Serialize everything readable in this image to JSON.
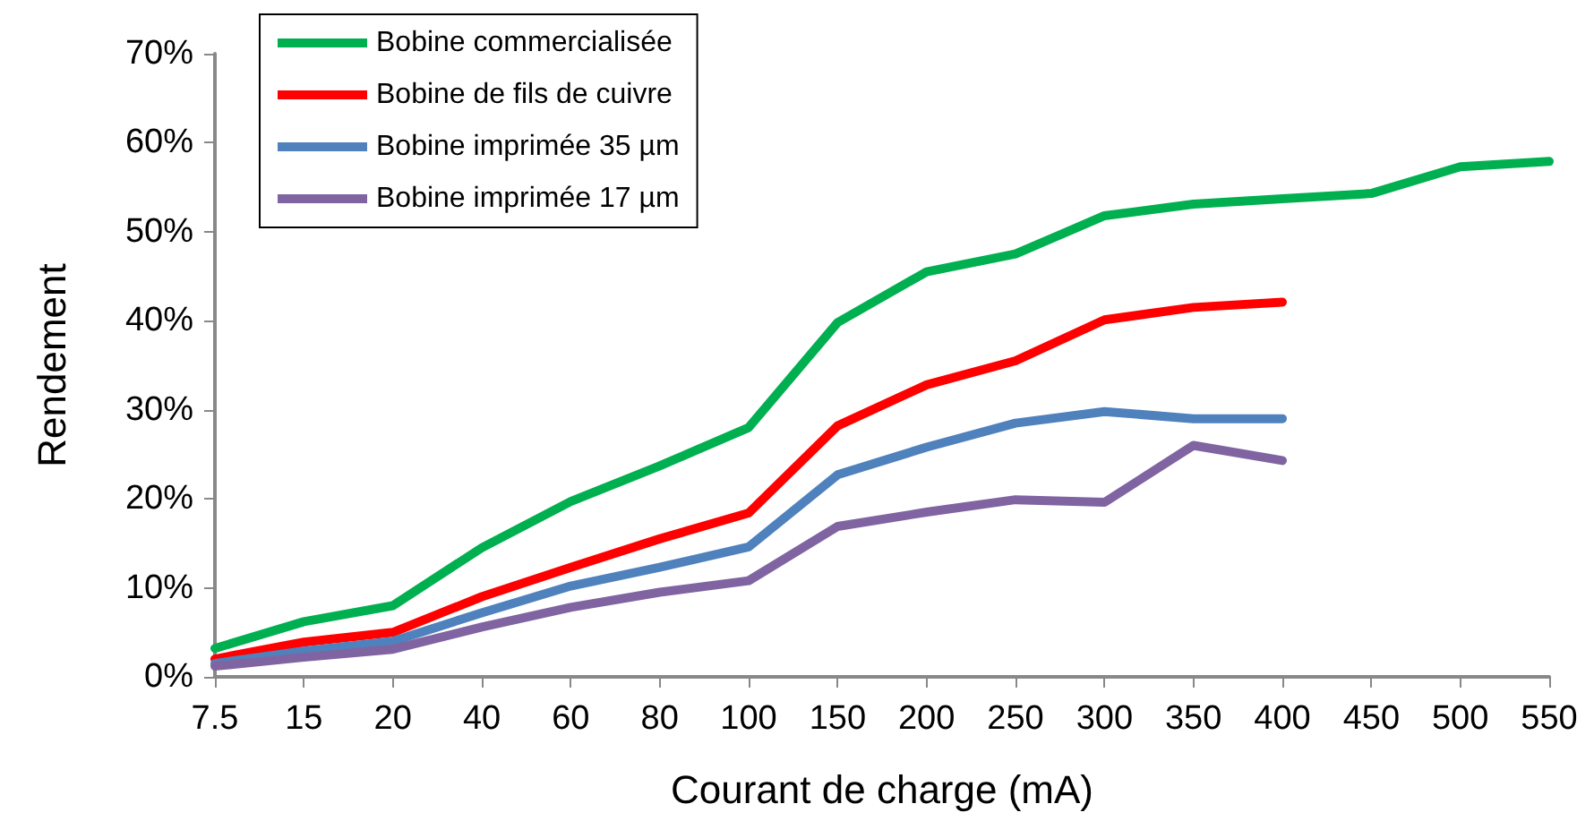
{
  "chart_data": {
    "type": "line",
    "xlabel": "Courant de charge (mA)",
    "ylabel": "Rendement",
    "categories": [
      "7.5",
      "15",
      "20",
      "40",
      "60",
      "80",
      "100",
      "150",
      "200",
      "250",
      "300",
      "350",
      "400",
      "450",
      "500",
      "550"
    ],
    "series": [
      {
        "name": "Bobine commercialisée",
        "color": "#00b050",
        "values": [
          3.2,
          6.2,
          8,
          14.5,
          19.7,
          23.7,
          28,
          39.8,
          45.5,
          47.5,
          51.8,
          53.1,
          53.7,
          54.3,
          57.3,
          57.9
        ]
      },
      {
        "name": "Bobine de fils de cuivre",
        "color": "#ff0000",
        "values": [
          2,
          3.9,
          5,
          9,
          12.3,
          15.5,
          18.4,
          28.2,
          32.8,
          35.5,
          40.1,
          41.5,
          42.1,
          null,
          null,
          null
        ]
      },
      {
        "name": "Bobine imprimée 35 µm",
        "color": "#4f81bd",
        "values": [
          1.5,
          2.9,
          4,
          7.2,
          10.2,
          12.3,
          14.6,
          22.7,
          25.8,
          28.5,
          29.8,
          29,
          29,
          null,
          null,
          null
        ]
      },
      {
        "name": "Bobine imprimée 17 µm",
        "color": "#8064a2",
        "values": [
          1.2,
          2.2,
          3.1,
          5.6,
          7.8,
          9.5,
          10.8,
          16.9,
          18.5,
          19.9,
          19.6,
          26,
          24.3,
          null,
          null,
          null
        ]
      }
    ],
    "ylim": [
      0,
      70
    ],
    "yticks": [
      {
        "value": 0,
        "label": "0%"
      },
      {
        "value": 10,
        "label": "10%"
      },
      {
        "value": 20,
        "label": "20%"
      },
      {
        "value": 30,
        "label": "30%"
      },
      {
        "value": 40,
        "label": "40%"
      },
      {
        "value": 50,
        "label": "50%"
      },
      {
        "value": 60,
        "label": "60%"
      },
      {
        "value": 70,
        "label": "70%"
      }
    ],
    "grid": false,
    "legend": "top left",
    "marker": "none",
    "line_style": "solid"
  }
}
